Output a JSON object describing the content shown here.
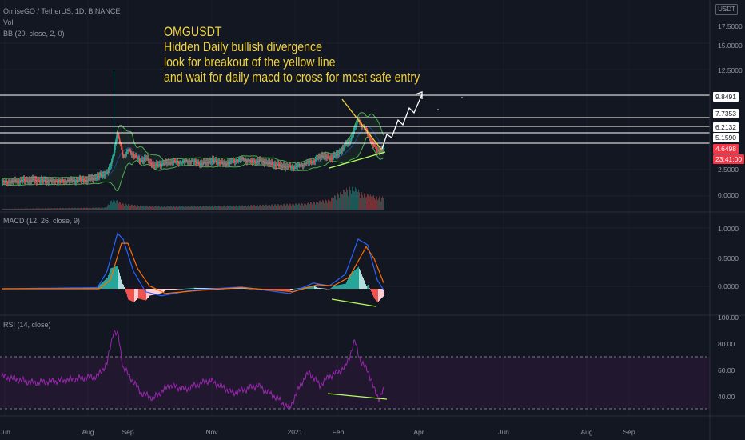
{
  "header": {
    "symbol_line": "OmiseGO / TetherUS, 1D, BINANCE",
    "vol_label": "Vol",
    "bb_label": "BB (20, close, 2, 0)",
    "macd_label": "MACD (12, 26, close, 9)",
    "rsi_label": "RSI (14, close)",
    "currency": "USDT"
  },
  "annotation": {
    "lines": [
      "OMGUSDT",
      "Hidden Daily bullish divergence",
      "look for breakout of the yellow line",
      "and wait for daily macd to cross for most safe entry"
    ],
    "color": "#f2d33b"
  },
  "price_tags": {
    "levels": [
      "9.8491",
      "7.7353",
      "6.2132",
      "5.1590"
    ],
    "last_price": "4.6498",
    "countdown": "23:41:00",
    "price_color": "#f23645"
  },
  "colors": {
    "background": "#131722",
    "bull": "#26a69a",
    "bear": "#ef5350",
    "bb": "#4caf50",
    "macd": "#2962ff",
    "signal": "#ff6d00",
    "rsi": "#9c27b0",
    "divergence": "#b2ff59",
    "breakout_line": "#f2d33b",
    "level_lines": "#ffffff"
  },
  "chart_data": [
    {
      "type": "candlestick",
      "title": "OmiseGO / TetherUS, 1D, BINANCE",
      "y_ticks": [
        "17.5000",
        "15.0000",
        "12.5000",
        "10.0000",
        "2.5000",
        "0.0000"
      ],
      "x_ticks": [
        "Jun",
        "Aug",
        "Sep",
        "Nov",
        "2021",
        "Feb",
        "Apr",
        "Jun",
        "Aug",
        "Sep"
      ],
      "horizontal_levels": [
        9.8491,
        7.7353,
        6.2132,
        5.159,
        4.6498
      ],
      "close_anchors": [
        [
          0,
          1.6
        ],
        [
          18,
          1.7
        ],
        [
          40,
          1.75
        ],
        [
          62,
          1.7
        ],
        [
          84,
          1.75
        ],
        [
          106,
          1.8
        ],
        [
          116,
          2.0
        ],
        [
          124,
          2.2
        ],
        [
          132,
          2.5
        ],
        [
          136,
          3.2
        ],
        [
          140,
          4.5
        ],
        [
          144,
          6.2
        ],
        [
          148,
          5.2
        ],
        [
          152,
          4.0
        ],
        [
          158,
          4.6
        ],
        [
          164,
          4.2
        ],
        [
          172,
          3.6
        ],
        [
          180,
          3.8
        ],
        [
          190,
          3.1
        ],
        [
          200,
          3.3
        ],
        [
          210,
          3.5
        ],
        [
          222,
          3.5
        ],
        [
          236,
          3.6
        ],
        [
          250,
          3.3
        ],
        [
          264,
          3.6
        ],
        [
          278,
          3.3
        ],
        [
          290,
          3.6
        ],
        [
          302,
          3.8
        ],
        [
          312,
          3.5
        ],
        [
          322,
          3.6
        ],
        [
          336,
          3.3
        ],
        [
          350,
          3.1
        ],
        [
          364,
          3.0
        ],
        [
          376,
          3.3
        ],
        [
          390,
          3.6
        ],
        [
          400,
          4.1
        ],
        [
          410,
          3.8
        ],
        [
          420,
          4.2
        ],
        [
          428,
          4.9
        ],
        [
          436,
          5.6
        ],
        [
          442,
          6.8
        ],
        [
          446,
          7.6
        ],
        [
          450,
          6.9
        ],
        [
          455,
          6.6
        ],
        [
          460,
          5.8
        ],
        [
          466,
          4.9
        ],
        [
          472,
          4.5
        ],
        [
          478,
          4.65
        ]
      ],
      "volume_anchors": [
        [
          130,
          0.05
        ],
        [
          138,
          0.25
        ],
        [
          144,
          0.22
        ],
        [
          150,
          0.15
        ],
        [
          170,
          0.1
        ],
        [
          200,
          0.08
        ],
        [
          300,
          0.1
        ],
        [
          380,
          0.15
        ],
        [
          410,
          0.25
        ],
        [
          425,
          0.45
        ],
        [
          440,
          0.55
        ],
        [
          450,
          0.4
        ],
        [
          470,
          0.3
        ]
      ]
    },
    {
      "type": "line",
      "title": "MACD (12, 26, close, 9)",
      "y_ticks": [
        "1.0000",
        "0.5000",
        "0.0000"
      ],
      "series": [
        {
          "name": "MACD",
          "anchors": [
            [
              0,
              0.0
            ],
            [
              120,
              0.02
            ],
            [
              132,
              0.3
            ],
            [
              145,
              0.95
            ],
            [
              152,
              0.85
            ],
            [
              165,
              0.3
            ],
            [
              180,
              -0.05
            ],
            [
              200,
              -0.12
            ],
            [
              240,
              -0.02
            ],
            [
              300,
              0.03
            ],
            [
              360,
              -0.08
            ],
            [
              390,
              0.1
            ],
            [
              410,
              0.05
            ],
            [
              430,
              0.25
            ],
            [
              446,
              0.85
            ],
            [
              458,
              0.75
            ],
            [
              470,
              0.15
            ],
            [
              478,
              -0.02
            ]
          ]
        },
        {
          "name": "Signal",
          "anchors": [
            [
              0,
              0.0
            ],
            [
              122,
              0.0
            ],
            [
              136,
              0.15
            ],
            [
              150,
              0.78
            ],
            [
              158,
              0.78
            ],
            [
              170,
              0.35
            ],
            [
              185,
              0.05
            ],
            [
              205,
              -0.08
            ],
            [
              245,
              -0.03
            ],
            [
              300,
              0.02
            ],
            [
              365,
              -0.05
            ],
            [
              395,
              0.07
            ],
            [
              415,
              0.05
            ],
            [
              435,
              0.2
            ],
            [
              456,
              0.72
            ],
            [
              466,
              0.52
            ],
            [
              478,
              0.1
            ]
          ]
        }
      ]
    },
    {
      "type": "line",
      "title": "RSI (14, close)",
      "y_ticks": [
        "100.00",
        "80.00",
        "60.00",
        "40.00"
      ],
      "band": [
        30,
        70
      ],
      "series": [
        {
          "name": "RSI",
          "anchors": [
            [
              0,
              55
            ],
            [
              40,
              50
            ],
            [
              80,
              52
            ],
            [
              120,
              55
            ],
            [
              132,
              65
            ],
            [
              140,
              90
            ],
            [
              146,
              86
            ],
            [
              152,
              62
            ],
            [
              160,
              55
            ],
            [
              175,
              42
            ],
            [
              190,
              38
            ],
            [
              210,
              48
            ],
            [
              230,
              45
            ],
            [
              260,
              52
            ],
            [
              290,
              42
            ],
            [
              320,
              48
            ],
            [
              345,
              38
            ],
            [
              360,
              30
            ],
            [
              375,
              50
            ],
            [
              385,
              58
            ],
            [
              398,
              48
            ],
            [
              410,
              55
            ],
            [
              420,
              58
            ],
            [
              430,
              62
            ],
            [
              442,
              82
            ],
            [
              450,
              65
            ],
            [
              458,
              60
            ],
            [
              466,
              45
            ],
            [
              472,
              38
            ],
            [
              478,
              44
            ]
          ]
        }
      ]
    }
  ]
}
